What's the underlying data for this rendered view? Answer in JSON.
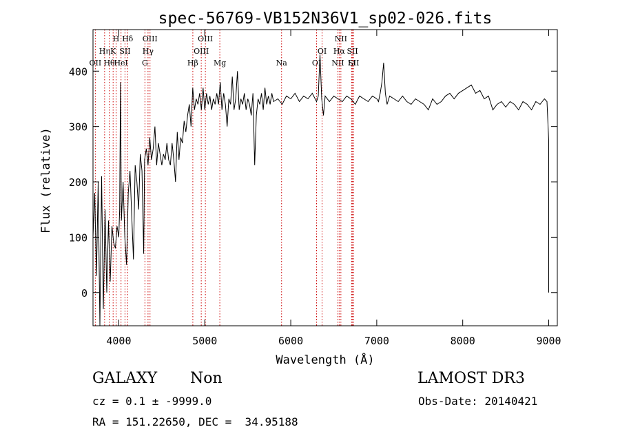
{
  "chart_data": {
    "type": "line",
    "title": "spec-56769-VB152N36V1_sp02-026.fits",
    "xlabel": "Wavelength (Å)",
    "ylabel": "Flux (relative)",
    "xlim": [
      3700,
      9100
    ],
    "ylim": [
      -60,
      475
    ],
    "x_ticks": [
      4000,
      5000,
      6000,
      7000,
      8000,
      9000
    ],
    "y_ticks": [
      0,
      100,
      200,
      300,
      400
    ],
    "grid": false,
    "line_color": "#000000",
    "marker_color": "#cc0000",
    "series": [
      {
        "points": [
          [
            3700,
            100
          ],
          [
            3720,
            180
          ],
          [
            3740,
            30
          ],
          [
            3760,
            200
          ],
          [
            3780,
            -60
          ],
          [
            3800,
            210
          ],
          [
            3820,
            -30
          ],
          [
            3840,
            150
          ],
          [
            3860,
            0
          ],
          [
            3880,
            130
          ],
          [
            3900,
            20
          ],
          [
            3920,
            120
          ],
          [
            3940,
            90
          ],
          [
            3960,
            80
          ],
          [
            3980,
            120
          ],
          [
            4000,
            100
          ],
          [
            4010,
            150
          ],
          [
            4020,
            380
          ],
          [
            4030,
            130
          ],
          [
            4050,
            200
          ],
          [
            4070,
            100
          ],
          [
            4090,
            50
          ],
          [
            4110,
            180
          ],
          [
            4130,
            220
          ],
          [
            4150,
            140
          ],
          [
            4170,
            60
          ],
          [
            4190,
            230
          ],
          [
            4210,
            200
          ],
          [
            4230,
            150
          ],
          [
            4250,
            250
          ],
          [
            4270,
            220
          ],
          [
            4290,
            70
          ],
          [
            4300,
            240
          ],
          [
            4320,
            260
          ],
          [
            4340,
            230
          ],
          [
            4360,
            280
          ],
          [
            4380,
            240
          ],
          [
            4400,
            260
          ],
          [
            4420,
            300
          ],
          [
            4440,
            230
          ],
          [
            4460,
            270
          ],
          [
            4480,
            250
          ],
          [
            4500,
            230
          ],
          [
            4520,
            250
          ],
          [
            4540,
            240
          ],
          [
            4560,
            270
          ],
          [
            4580,
            240
          ],
          [
            4600,
            230
          ],
          [
            4620,
            270
          ],
          [
            4640,
            240
          ],
          [
            4660,
            200
          ],
          [
            4680,
            290
          ],
          [
            4700,
            240
          ],
          [
            4720,
            280
          ],
          [
            4740,
            270
          ],
          [
            4760,
            310
          ],
          [
            4780,
            290
          ],
          [
            4800,
            320
          ],
          [
            4820,
            340
          ],
          [
            4840,
            300
          ],
          [
            4860,
            370
          ],
          [
            4880,
            330
          ],
          [
            4900,
            350
          ],
          [
            4920,
            340
          ],
          [
            4940,
            360
          ],
          [
            4960,
            330
          ],
          [
            4980,
            370
          ],
          [
            5000,
            330
          ],
          [
            5020,
            360
          ],
          [
            5040,
            340
          ],
          [
            5060,
            355
          ],
          [
            5080,
            330
          ],
          [
            5100,
            350
          ],
          [
            5120,
            340
          ],
          [
            5140,
            360
          ],
          [
            5160,
            340
          ],
          [
            5180,
            380
          ],
          [
            5200,
            330
          ],
          [
            5220,
            360
          ],
          [
            5240,
            340
          ],
          [
            5260,
            300
          ],
          [
            5280,
            350
          ],
          [
            5300,
            340
          ],
          [
            5320,
            390
          ],
          [
            5340,
            330
          ],
          [
            5360,
            350
          ],
          [
            5380,
            400
          ],
          [
            5400,
            330
          ],
          [
            5420,
            350
          ],
          [
            5440,
            340
          ],
          [
            5460,
            360
          ],
          [
            5480,
            330
          ],
          [
            5500,
            350
          ],
          [
            5520,
            340
          ],
          [
            5540,
            320
          ],
          [
            5560,
            360
          ],
          [
            5580,
            230
          ],
          [
            5600,
            320
          ],
          [
            5620,
            350
          ],
          [
            5640,
            340
          ],
          [
            5660,
            360
          ],
          [
            5680,
            330
          ],
          [
            5700,
            370
          ],
          [
            5720,
            340
          ],
          [
            5740,
            355
          ],
          [
            5760,
            340
          ],
          [
            5780,
            360
          ],
          [
            5800,
            345
          ],
          [
            5850,
            350
          ],
          [
            5900,
            340
          ],
          [
            5950,
            355
          ],
          [
            6000,
            350
          ],
          [
            6050,
            360
          ],
          [
            6100,
            345
          ],
          [
            6150,
            355
          ],
          [
            6200,
            350
          ],
          [
            6250,
            360
          ],
          [
            6300,
            345
          ],
          [
            6320,
            355
          ],
          [
            6340,
            430
          ],
          [
            6360,
            350
          ],
          [
            6380,
            320
          ],
          [
            6400,
            355
          ],
          [
            6450,
            345
          ],
          [
            6500,
            355
          ],
          [
            6550,
            350
          ],
          [
            6600,
            345
          ],
          [
            6650,
            355
          ],
          [
            6700,
            350
          ],
          [
            6750,
            340
          ],
          [
            6800,
            355
          ],
          [
            6850,
            350
          ],
          [
            6900,
            345
          ],
          [
            6950,
            355
          ],
          [
            7000,
            350
          ],
          [
            7020,
            345
          ],
          [
            7040,
            360
          ],
          [
            7060,
            380
          ],
          [
            7080,
            415
          ],
          [
            7100,
            360
          ],
          [
            7120,
            340
          ],
          [
            7150,
            355
          ],
          [
            7200,
            350
          ],
          [
            7250,
            345
          ],
          [
            7300,
            355
          ],
          [
            7350,
            345
          ],
          [
            7400,
            340
          ],
          [
            7450,
            350
          ],
          [
            7500,
            345
          ],
          [
            7550,
            340
          ],
          [
            7600,
            330
          ],
          [
            7650,
            350
          ],
          [
            7700,
            340
          ],
          [
            7750,
            345
          ],
          [
            7800,
            355
          ],
          [
            7850,
            360
          ],
          [
            7900,
            350
          ],
          [
            7950,
            360
          ],
          [
            8000,
            365
          ],
          [
            8050,
            370
          ],
          [
            8100,
            375
          ],
          [
            8150,
            360
          ],
          [
            8200,
            365
          ],
          [
            8250,
            350
          ],
          [
            8300,
            355
          ],
          [
            8350,
            330
          ],
          [
            8400,
            340
          ],
          [
            8450,
            345
          ],
          [
            8500,
            335
          ],
          [
            8550,
            345
          ],
          [
            8600,
            340
          ],
          [
            8650,
            330
          ],
          [
            8700,
            345
          ],
          [
            8750,
            340
          ],
          [
            8800,
            330
          ],
          [
            8850,
            345
          ],
          [
            8900,
            340
          ],
          [
            8950,
            350
          ],
          [
            8980,
            345
          ],
          [
            9000,
            275
          ],
          [
            9000,
            100
          ],
          [
            9000,
            0
          ]
        ]
      }
    ],
    "line_markers": [
      {
        "wavelength": 3727,
        "label": "OII"
      },
      {
        "wavelength": 3835,
        "label": "Hη"
      },
      {
        "wavelength": 3889,
        "label": "Hθ"
      },
      {
        "wavelength": 3934,
        "label": "K"
      },
      {
        "wavelength": 3969,
        "label": "H"
      },
      {
        "wavelength": 4026,
        "label": "HeI"
      },
      {
        "wavelength": 4072,
        "label": "SII"
      },
      {
        "wavelength": 4102,
        "label": "Hδ"
      },
      {
        "wavelength": 4304,
        "label": "G"
      },
      {
        "wavelength": 4340,
        "label": "Hγ"
      },
      {
        "wavelength": 4363,
        "label": "OIII"
      },
      {
        "wavelength": 4861,
        "label": "Hβ"
      },
      {
        "wavelength": 4959,
        "label": "OIII"
      },
      {
        "wavelength": 5007,
        "label": "OIII"
      },
      {
        "wavelength": 5175,
        "label": "Mg"
      },
      {
        "wavelength": 5893,
        "label": "Na"
      },
      {
        "wavelength": 6300,
        "label": "OI"
      },
      {
        "wavelength": 6364,
        "label": "OI"
      },
      {
        "wavelength": 6548,
        "label": "NII"
      },
      {
        "wavelength": 6563,
        "label": "Hα"
      },
      {
        "wavelength": 6583,
        "label": "NII"
      },
      {
        "wavelength": 6708,
        "label": "Li"
      },
      {
        "wavelength": 6717,
        "label": "SII"
      },
      {
        "wavelength": 6731,
        "label": "SII"
      }
    ]
  },
  "info": {
    "class_label": "GALAXY",
    "subclass_label": "Non",
    "survey_label": "LAMOST DR3",
    "cz_text": "cz = 0.1 ± -9999.0",
    "obs_date_text": "Obs-Date: 20140421",
    "coords_text": "RA = 151.22650, DEC =  34.95188"
  }
}
